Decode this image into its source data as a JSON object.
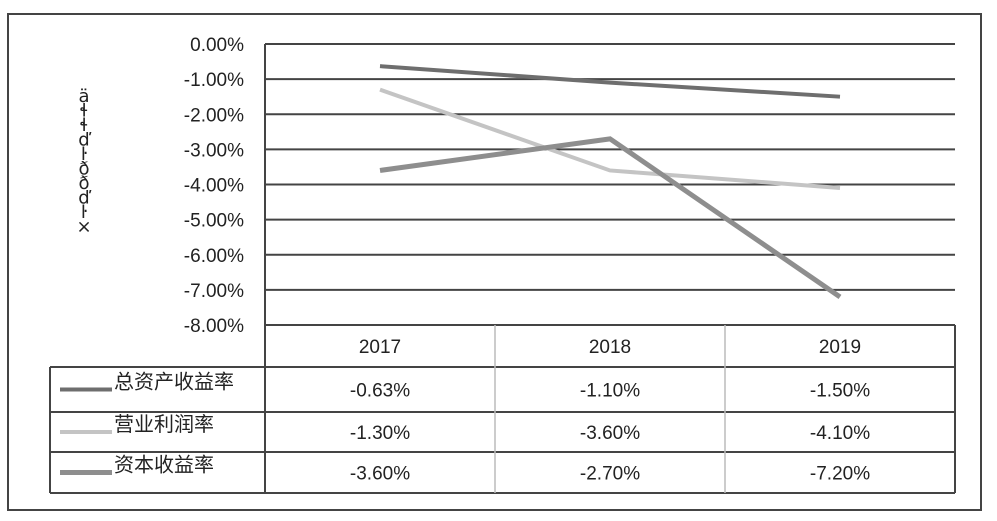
{
  "chart_data": {
    "type": "line",
    "title": "",
    "xlabel": "",
    "ylabel": "ä\nɬ\nɬ\nď\nŀ\nð\nð\nď\nŀ\n×",
    "categories": [
      "2017",
      "2018",
      "2019"
    ],
    "y_ticks": [
      "0.00%",
      "-1.00%",
      "-2.00%",
      "-3.00%",
      "-4.00%",
      "-5.00%",
      "-6.00%",
      "-7.00%",
      "-8.00%"
    ],
    "ylim": [
      -8,
      0
    ],
    "grid": true,
    "legend": "data-table",
    "series": [
      {
        "name": "总资产收益率",
        "values": [
          -0.63,
          -1.1,
          -1.5
        ],
        "labels": [
          "-0.63%",
          "-1.10%",
          "-1.50%"
        ],
        "color": "#6e6e6e",
        "width": 4
      },
      {
        "name": "营业利润率",
        "values": [
          -1.3,
          -3.6,
          -4.1
        ],
        "labels": [
          "-1.30%",
          "-3.60%",
          "-4.10%"
        ],
        "color": "#c4c4c4",
        "width": 4
      },
      {
        "name": "资本收益率",
        "values": [
          -3.6,
          -2.7,
          -7.2
        ],
        "labels": [
          "-3.60%",
          "-2.70%",
          "-7.20%"
        ],
        "color": "#8e8e8e",
        "width": 5
      }
    ]
  }
}
